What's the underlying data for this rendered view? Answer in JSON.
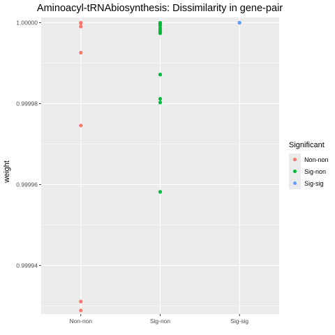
{
  "chart_data": {
    "type": "scatter",
    "title": "Aminoacyl-tRNAbiosynthesis: Dissimilarity in gene-pair",
    "xlabel": "",
    "ylabel": "weight",
    "categories": [
      "Non-non",
      "Sig-non",
      "Sig-sig"
    ],
    "ylim": [
      0.999928,
      1.0000013
    ],
    "y_ticks": [
      {
        "value": 0.99994,
        "label": "0.99994"
      },
      {
        "value": 0.99996,
        "label": "0.99996"
      },
      {
        "value": 0.99998,
        "label": "0.99998"
      },
      {
        "value": 1.0,
        "label": "1.00000"
      }
    ],
    "grid": true,
    "legend": {
      "title": "Significant",
      "placement": "right",
      "entries": [
        {
          "name": "Non-non",
          "color": "#F8766D"
        },
        {
          "name": "Sig-non",
          "color": "#00BA38"
        },
        {
          "name": "Sig-sig",
          "color": "#619CFF"
        }
      ]
    },
    "series": [
      {
        "name": "Non-non",
        "category": "Non-non",
        "color": "#F8766D",
        "values": [
          1.0,
          0.99999985,
          0.99999905,
          0.9999926,
          0.9999746,
          0.9999311,
          0.9999289
        ]
      },
      {
        "name": "Sig-non",
        "category": "Sig-non",
        "color": "#00BA38",
        "values": [
          1.0,
          0.99999985,
          0.9999997,
          0.9999993,
          0.9999987,
          0.9999982,
          0.9999978,
          0.9999974,
          0.9999872,
          0.9999812,
          0.9999803,
          0.9999582
        ]
      },
      {
        "name": "Sig-sig",
        "category": "Sig-sig",
        "color": "#619CFF",
        "values": [
          1.0,
          1.0,
          1.0
        ]
      }
    ]
  },
  "colors": {
    "panel_background": "#ebebeb",
    "grid_major": "#ffffff"
  }
}
